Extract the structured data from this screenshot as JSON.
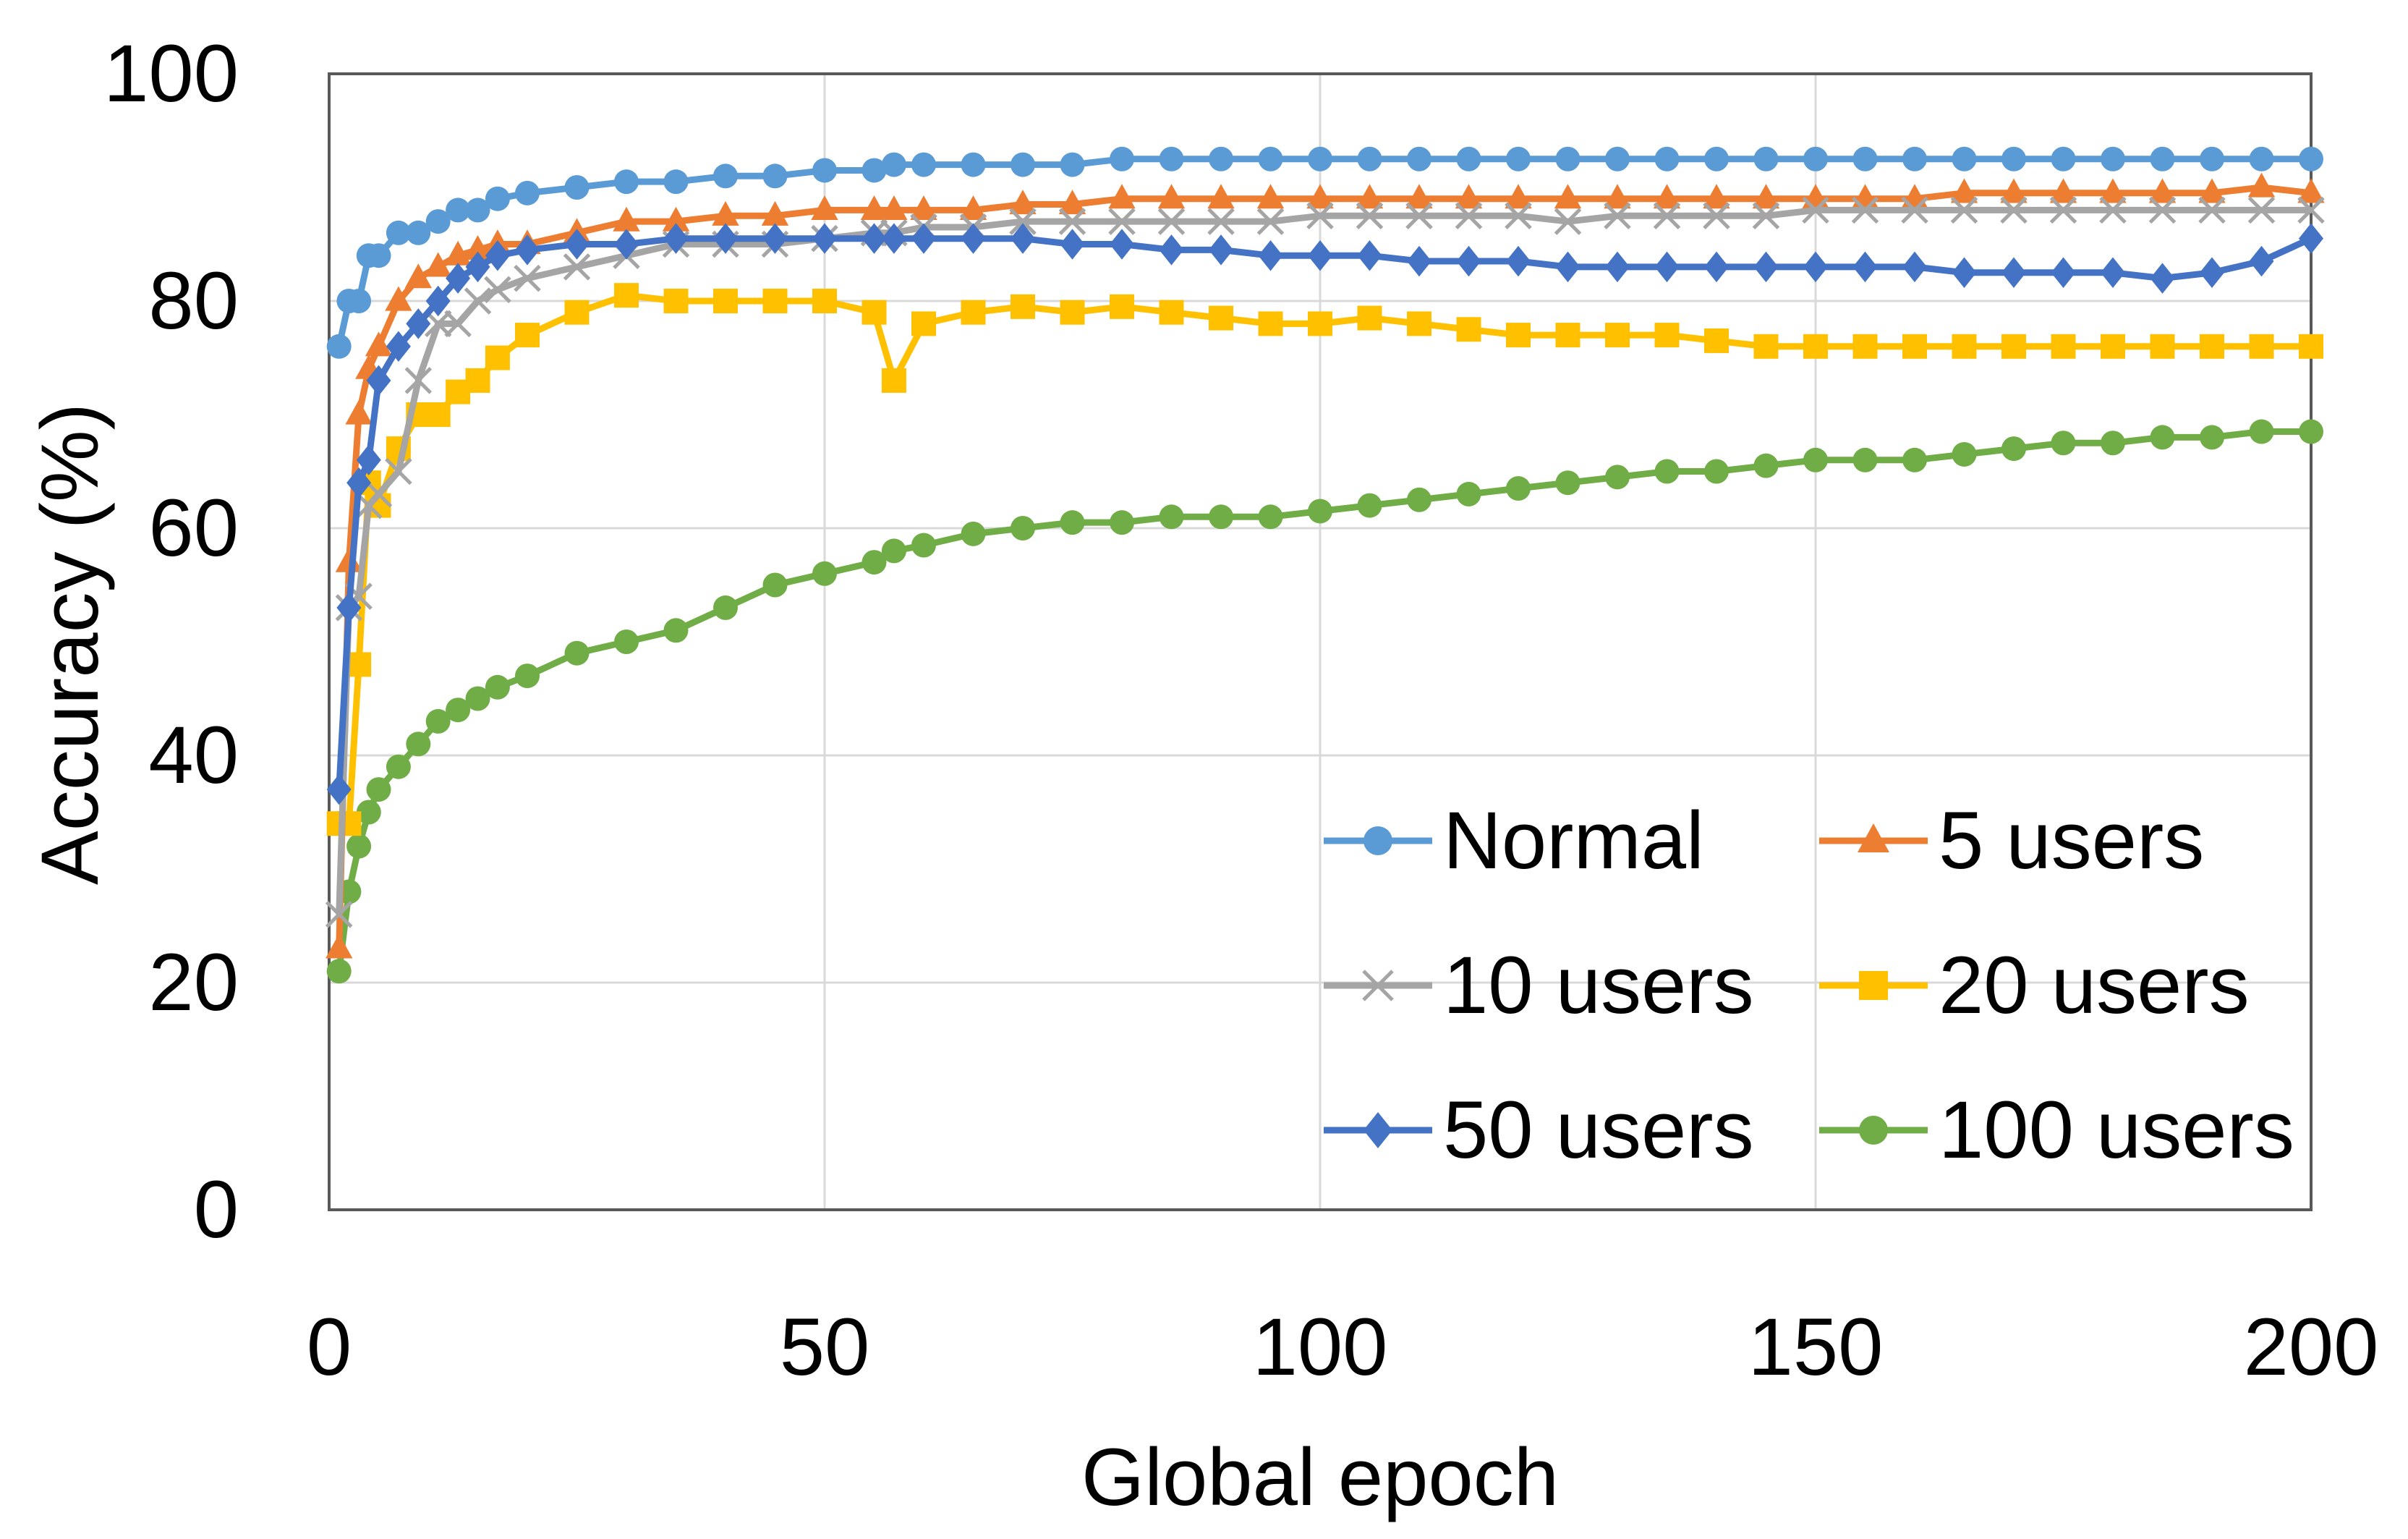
{
  "chart_data": {
    "type": "line",
    "title": "",
    "xlabel": "Global epoch",
    "ylabel": "Accuracy (%)",
    "xlim": [
      0,
      200
    ],
    "ylim": [
      0,
      100
    ],
    "xticks": [
      0,
      50,
      100,
      150,
      200
    ],
    "yticks": [
      0,
      20,
      40,
      60,
      80,
      100
    ],
    "grid": true,
    "legend_position": "lower-right",
    "epochs_sampled": [
      1,
      2,
      3,
      4,
      5,
      7,
      9,
      11,
      13,
      15,
      17,
      20,
      25,
      30,
      35,
      40,
      45,
      50,
      55,
      57,
      60,
      65,
      70,
      75,
      80,
      85,
      90,
      95,
      100,
      105,
      110,
      115,
      120,
      125,
      130,
      135,
      140,
      145,
      150,
      155,
      160,
      165,
      170,
      175,
      180,
      185,
      190,
      195,
      200
    ],
    "series": [
      {
        "name": "Normal",
        "color": "#5B9BD5",
        "marker": "circle",
        "values": [
          76,
          80,
          80,
          84,
          84,
          86,
          86,
          87,
          88,
          88,
          89,
          89.5,
          90,
          90.5,
          90.5,
          91,
          91,
          91.5,
          91.5,
          92,
          92,
          92,
          92,
          92,
          92.5,
          92.5,
          92.5,
          92.5,
          92.5,
          92.5,
          92.5,
          92.5,
          92.5,
          92.5,
          92.5,
          92.5,
          92.5,
          92.5,
          92.5,
          92.5,
          92.5,
          92.5,
          92.5,
          92.5,
          92.5,
          92.5,
          92.5,
          92.5,
          92.5
        ]
      },
      {
        "name": "5 users",
        "color": "#ED7D31",
        "marker": "triangle",
        "values": [
          23,
          57,
          70,
          74,
          76,
          80,
          82,
          83,
          84,
          84.5,
          85,
          85,
          86,
          87,
          87,
          87.5,
          87.5,
          88,
          88,
          88,
          88,
          88,
          88.5,
          88.5,
          89,
          89,
          89,
          89,
          89,
          89,
          89,
          89,
          89,
          89,
          89,
          89,
          89,
          89,
          89,
          89,
          89,
          89.5,
          89.5,
          89.5,
          89.5,
          89.5,
          89.5,
          90,
          89.5
        ]
      },
      {
        "name": "10 users",
        "color": "#A5A5A5",
        "marker": "x",
        "values": [
          26,
          53,
          54,
          62,
          63,
          65,
          73,
          78,
          78,
          80,
          81,
          82,
          83,
          84,
          85,
          85,
          85,
          85.5,
          86,
          86,
          86.5,
          86.5,
          87,
          87,
          87,
          87,
          87,
          87,
          87.5,
          87.5,
          87.5,
          87.5,
          87.5,
          87,
          87.5,
          87.5,
          87.5,
          87.5,
          88,
          88,
          88,
          88,
          88,
          88,
          88,
          88,
          88,
          88,
          88
        ]
      },
      {
        "name": "20 users",
        "color": "#FFC000",
        "marker": "square",
        "values": [
          34,
          34,
          48,
          64,
          62,
          67,
          70,
          70,
          72,
          73,
          75,
          77,
          79,
          80.5,
          80,
          80,
          80,
          80,
          79,
          73,
          78,
          79,
          79.5,
          79,
          79.5,
          79,
          78.5,
          78,
          78,
          78.5,
          78,
          77.5,
          77,
          77,
          77,
          77,
          76.5,
          76,
          76,
          76,
          76,
          76,
          76,
          76,
          76,
          76,
          76,
          76,
          76
        ]
      },
      {
        "name": "50 users",
        "color": "#4472C4",
        "marker": "diamond",
        "values": [
          37,
          53,
          64,
          66,
          73,
          76,
          78,
          80,
          82,
          83,
          84,
          84.5,
          85,
          85,
          85.5,
          85.5,
          85.5,
          85.5,
          85.5,
          85.5,
          85.5,
          85.5,
          85.5,
          85,
          85,
          84.5,
          84.5,
          84,
          84,
          84,
          83.5,
          83.5,
          83.5,
          83,
          83,
          83,
          83,
          83,
          83,
          83,
          83,
          82.5,
          82.5,
          82.5,
          82.5,
          82,
          82.5,
          83.5,
          85.5
        ]
      },
      {
        "name": "100 users",
        "color": "#70AD47",
        "marker": "circle",
        "values": [
          21,
          28,
          32,
          35,
          37,
          39,
          41,
          43,
          44,
          45,
          46,
          47,
          49,
          50,
          51,
          53,
          55,
          56,
          57,
          58,
          58.5,
          59.5,
          60,
          60.5,
          60.5,
          61,
          61,
          61,
          61.5,
          62,
          62.5,
          63,
          63.5,
          64,
          64.5,
          65,
          65,
          65.5,
          66,
          66,
          66,
          66.5,
          67,
          67.5,
          67.5,
          68,
          68,
          68.5,
          68.5
        ]
      }
    ]
  }
}
